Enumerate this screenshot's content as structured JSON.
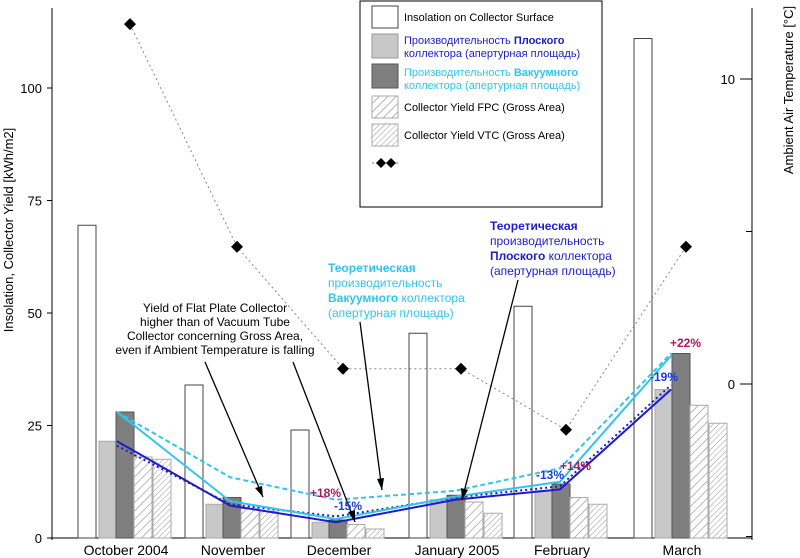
{
  "chart_data": {
    "type": "bar",
    "categories": [
      "October 2004",
      "November",
      "December",
      "January 2005",
      "February",
      "March"
    ],
    "y_left": {
      "label": "Insolation, Collector Yield  [kWh/m2]",
      "ticks": [
        "0",
        "25",
        "50",
        "75",
        "100"
      ],
      "range": [
        0,
        120
      ]
    },
    "y_right": {
      "label": "Ambient Air Temperature  [°C]",
      "ticks": [
        "0",
        "10"
      ]
    },
    "series": [
      {
        "name": "Insolation on Collector Surface",
        "kind": "bar",
        "values": [
          69.5,
          34,
          24,
          45.5,
          51.5,
          111
        ]
      },
      {
        "name_bold": "Плоского",
        "name_pre": "Производительность ",
        "name_line2": "коллектора (апертурная площадь)",
        "kind": "bar",
        "values": [
          21.5,
          7.5,
          3.5,
          8.5,
          10.5,
          33
        ]
      },
      {
        "name_bold": "Вакуумного",
        "name_pre": "Производительность ",
        "name_line2": "коллектора (апертурная площадь)",
        "kind": "bar",
        "values": [
          28,
          9,
          4,
          9.5,
          12,
          41
        ]
      },
      {
        "name": "Collector Yield FPC (Gross Area)",
        "kind": "bar",
        "values": [
          18,
          6.5,
          3,
          8,
          9,
          29.5
        ]
      },
      {
        "name": "Collector Yield VTC (Gross Area)",
        "kind": "bar",
        "values": [
          17.5,
          6,
          2,
          5.5,
          7.5,
          25.5
        ]
      },
      {
        "kind": "temperature",
        "values": [
          11.8,
          4.5,
          0.5,
          0.5,
          -1.5,
          4.5
        ]
      }
    ],
    "lines": {
      "fpc_solid": [
        21.5,
        7.2,
        3.5,
        8.5,
        10.8,
        33
      ],
      "vtc_solid": [
        28,
        8.2,
        4.2,
        9.2,
        12.5,
        40.5
      ],
      "fpc_dotted": [
        20.5,
        7.5,
        4.8,
        9,
        11.5,
        34
      ],
      "vtc_dotted": [
        28,
        13.5,
        8.5,
        10.5,
        15.5,
        41
      ]
    },
    "annotations": {
      "note_en": [
        "Yield of Flat Plate Collector",
        "higher than of Vacuum Tube",
        "Collector concerning Gross Area,",
        "even if Ambient Temperature is falling"
      ],
      "vtc_theory": {
        "title": "Теоретическая",
        "l2": "производительность",
        "bold": "Вакуумного",
        "l3rest": " коллектора",
        "l4": "(апертурная площадь)"
      },
      "fpc_theory": {
        "title": "Теоретическая",
        "l2": "производительность",
        "bold": "Плоского",
        "l3rest": " коллектора",
        "l4": "(апертурная площадь)"
      },
      "pct": {
        "dec_up": "+18%",
        "dec_down": "-15%",
        "feb_down": "-13%",
        "feb_up": "+14%",
        "mar_up": "+22%",
        "mar_down": "-19%"
      }
    },
    "colors": {
      "fpc_line": "#1c1cc8",
      "vtc_line": "#33c4ec",
      "fpc_bar": "#c8c8c8",
      "vtc_bar": "#7f7f7f",
      "pct_red": "#b0185a",
      "pct_blue": "#1c3cdc"
    }
  }
}
